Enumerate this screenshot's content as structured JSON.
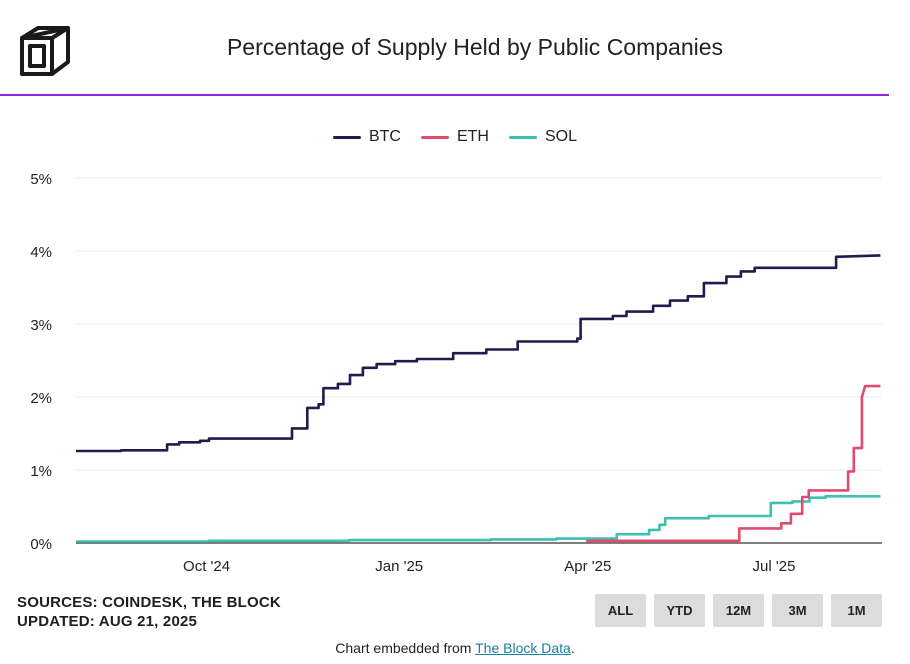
{
  "header": {
    "title": "Percentage of Supply Held by Public Companies"
  },
  "colors": {
    "accent": "#8a2be2",
    "btc": "#211c4e",
    "eth": "#e34b6e",
    "sol": "#3fbfb0"
  },
  "chart_data": {
    "type": "line",
    "title": "Percentage of Supply Held by Public Companies",
    "xlabel": "",
    "ylabel": "",
    "ylim": [
      0,
      5
    ],
    "yticks": [
      "0%",
      "1%",
      "2%",
      "3%",
      "4%",
      "5%"
    ],
    "ytick_values": [
      0,
      1,
      2,
      3,
      4,
      5
    ],
    "xlim": [
      0,
      100
    ],
    "xticks": [
      "Oct '24",
      "Jan '25",
      "Apr '25",
      "Jul '25"
    ],
    "xtick_positions": [
      16.2,
      40.1,
      63.5,
      86.6
    ],
    "grid": true,
    "legend": "top-center",
    "series": [
      {
        "name": "BTC",
        "points": [
          [
            0,
            1.26
          ],
          [
            5.6,
            1.26
          ],
          [
            5.6,
            1.27
          ],
          [
            11.3,
            1.27
          ],
          [
            11.3,
            1.35
          ],
          [
            12.8,
            1.35
          ],
          [
            12.8,
            1.38
          ],
          [
            15.4,
            1.38
          ],
          [
            15.4,
            1.4
          ],
          [
            16.5,
            1.4
          ],
          [
            16.5,
            1.43
          ],
          [
            26.8,
            1.43
          ],
          [
            26.8,
            1.57
          ],
          [
            28.7,
            1.57
          ],
          [
            28.7,
            1.85
          ],
          [
            30.1,
            1.85
          ],
          [
            30.1,
            1.9
          ],
          [
            30.7,
            1.9
          ],
          [
            30.7,
            2.12
          ],
          [
            32.5,
            2.12
          ],
          [
            32.5,
            2.18
          ],
          [
            34.0,
            2.18
          ],
          [
            34.0,
            2.3
          ],
          [
            35.6,
            2.3
          ],
          [
            35.6,
            2.4
          ],
          [
            37.3,
            2.4
          ],
          [
            37.3,
            2.45
          ],
          [
            39.6,
            2.45
          ],
          [
            39.6,
            2.49
          ],
          [
            42.3,
            2.49
          ],
          [
            42.3,
            2.52
          ],
          [
            46.8,
            2.52
          ],
          [
            46.8,
            2.6
          ],
          [
            50.9,
            2.6
          ],
          [
            50.9,
            2.65
          ],
          [
            54.8,
            2.65
          ],
          [
            54.8,
            2.76
          ],
          [
            62.2,
            2.76
          ],
          [
            62.2,
            2.8
          ],
          [
            62.6,
            2.8
          ],
          [
            62.6,
            3.07
          ],
          [
            66.6,
            3.07
          ],
          [
            66.6,
            3.11
          ],
          [
            68.3,
            3.11
          ],
          [
            68.3,
            3.17
          ],
          [
            71.6,
            3.17
          ],
          [
            71.6,
            3.25
          ],
          [
            73.7,
            3.25
          ],
          [
            73.7,
            3.32
          ],
          [
            75.9,
            3.32
          ],
          [
            75.9,
            3.38
          ],
          [
            77.9,
            3.38
          ],
          [
            77.9,
            3.56
          ],
          [
            80.7,
            3.56
          ],
          [
            80.7,
            3.65
          ],
          [
            82.5,
            3.65
          ],
          [
            82.5,
            3.72
          ],
          [
            84.2,
            3.72
          ],
          [
            84.2,
            3.77
          ],
          [
            94.3,
            3.77
          ],
          [
            94.3,
            3.92
          ],
          [
            99.8,
            3.94
          ]
        ]
      },
      {
        "name": "ETH",
        "points": [
          [
            63.3,
            0.03
          ],
          [
            82.3,
            0.03
          ],
          [
            82.3,
            0.2
          ],
          [
            87.5,
            0.2
          ],
          [
            87.5,
            0.27
          ],
          [
            88.7,
            0.27
          ],
          [
            88.7,
            0.4
          ],
          [
            90.1,
            0.4
          ],
          [
            90.1,
            0.63
          ],
          [
            90.9,
            0.63
          ],
          [
            90.9,
            0.72
          ],
          [
            95.8,
            0.72
          ],
          [
            95.8,
            0.98
          ],
          [
            96.5,
            0.98
          ],
          [
            96.5,
            1.3
          ],
          [
            97.5,
            1.3
          ],
          [
            97.5,
            2.0
          ],
          [
            97.9,
            2.15
          ],
          [
            99.8,
            2.15
          ]
        ]
      },
      {
        "name": "SOL",
        "points": [
          [
            0,
            0.02
          ],
          [
            16.5,
            0.02
          ],
          [
            16.5,
            0.03
          ],
          [
            33.9,
            0.03
          ],
          [
            33.9,
            0.04
          ],
          [
            51.5,
            0.04
          ],
          [
            51.5,
            0.05
          ],
          [
            59.6,
            0.05
          ],
          [
            59.6,
            0.06
          ],
          [
            67.1,
            0.06
          ],
          [
            67.1,
            0.12
          ],
          [
            71.1,
            0.12
          ],
          [
            71.1,
            0.18
          ],
          [
            72.4,
            0.18
          ],
          [
            72.4,
            0.25
          ],
          [
            73.1,
            0.25
          ],
          [
            73.1,
            0.34
          ],
          [
            78.5,
            0.34
          ],
          [
            78.5,
            0.37
          ],
          [
            86.2,
            0.37
          ],
          [
            86.2,
            0.55
          ],
          [
            88.9,
            0.55
          ],
          [
            88.9,
            0.57
          ],
          [
            91.0,
            0.57
          ],
          [
            91.0,
            0.62
          ],
          [
            93.0,
            0.62
          ],
          [
            93.0,
            0.64
          ],
          [
            99.8,
            0.64
          ]
        ]
      }
    ]
  },
  "sources": {
    "line1": "SOURCES: COINDESK, THE BLOCK",
    "line2": "UPDATED: AUG 21, 2025"
  },
  "range_buttons": [
    "ALL",
    "YTD",
    "12M",
    "3M",
    "1M"
  ],
  "footer": {
    "prefix": "Chart embedded from ",
    "link": "The Block Data",
    "suffix": "."
  }
}
